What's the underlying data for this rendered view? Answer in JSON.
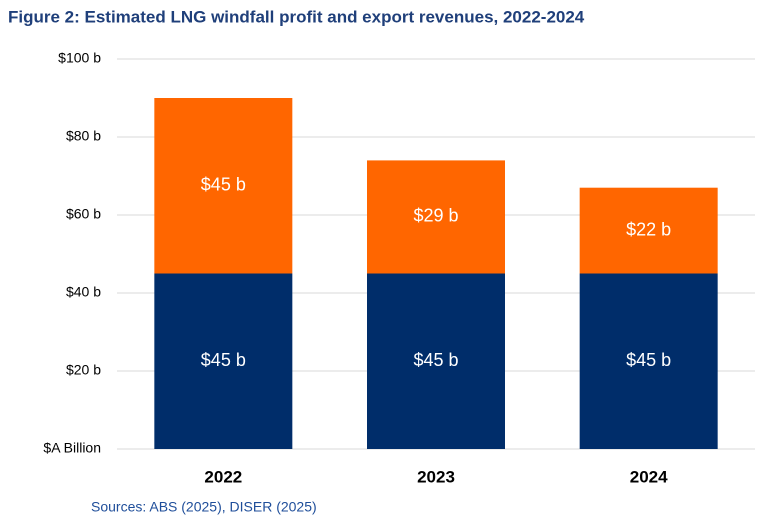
{
  "chart_data": {
    "type": "stacked_bar",
    "title": "Figure 2: Estimated LNG windfall profit and export revenues, 2022-2024",
    "source": "Sources: ABS (2025), DISER (2025)",
    "categories": [
      "2022",
      "2023",
      "2024"
    ],
    "series": [
      {
        "color": "#002d6a",
        "values": [
          45,
          45,
          45
        ],
        "value_labels": [
          "$45 b",
          "$45 b",
          "$45 b"
        ]
      },
      {
        "color": "#ff6600",
        "values": [
          45,
          29,
          22
        ],
        "value_labels": [
          "$45 b",
          "$29 b",
          "$22 b"
        ]
      }
    ],
    "ylim": [
      0,
      100
    ],
    "yticks": [
      {
        "value": 0,
        "label": "$A Billion"
      },
      {
        "value": 20,
        "label": "$20 b"
      },
      {
        "value": 40,
        "label": "$40 b"
      },
      {
        "value": 60,
        "label": "$60 b"
      },
      {
        "value": 80,
        "label": "$80 b"
      },
      {
        "value": 100,
        "label": "$100 b"
      }
    ],
    "grid": true
  }
}
